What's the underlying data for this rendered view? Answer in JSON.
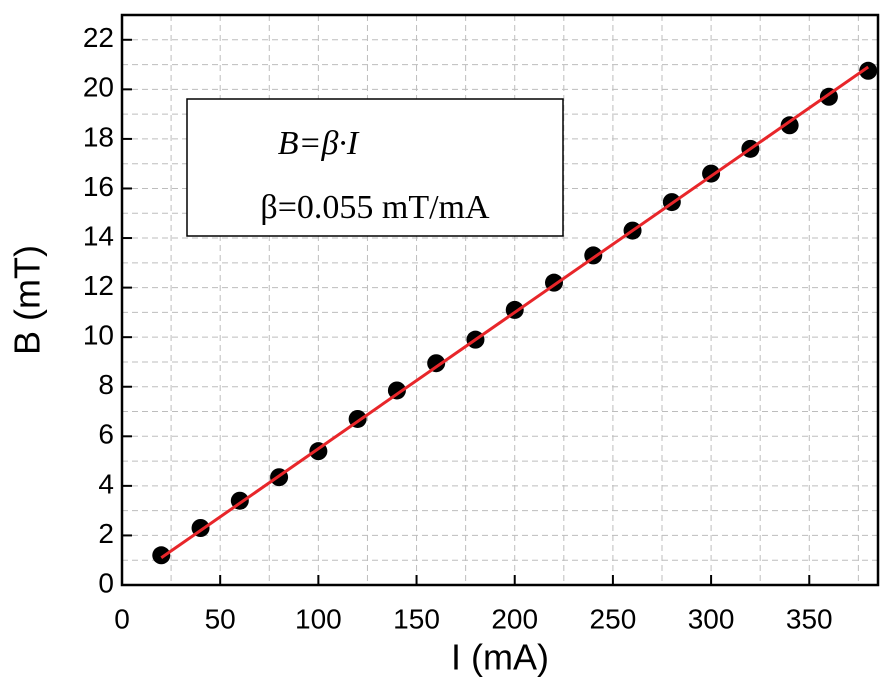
{
  "chart_data": {
    "type": "scatter",
    "xlabel": "I (mA)",
    "ylabel": "B (mT)",
    "x": [
      20,
      40,
      60,
      80,
      100,
      120,
      140,
      160,
      180,
      200,
      220,
      240,
      260,
      280,
      300,
      320,
      340,
      360,
      380
    ],
    "values": [
      1.2,
      2.3,
      3.4,
      4.35,
      5.4,
      6.7,
      7.85,
      8.95,
      9.9,
      11.1,
      12.2,
      13.3,
      14.3,
      15.45,
      16.6,
      17.6,
      18.55,
      19.7,
      20.75
    ],
    "color": "#000000",
    "fit_line": {
      "color": "#e8262a",
      "x": [
        20,
        380
      ],
      "values": [
        1.1,
        20.9
      ]
    },
    "annotations": [
      "B=β·I",
      "β=0.055 mT/mA"
    ],
    "xlim": [
      0,
      385
    ],
    "ylim": [
      0,
      23
    ],
    "xticks": [
      0,
      50,
      100,
      150,
      200,
      250,
      300,
      350
    ],
    "yticks": [
      0,
      2,
      4,
      6,
      8,
      10,
      12,
      14,
      16,
      18,
      20,
      22
    ],
    "xminor": [
      25,
      75,
      125,
      175,
      225,
      275,
      325,
      375
    ],
    "yminor": [
      1,
      3,
      5,
      7,
      9,
      11,
      13,
      15,
      17,
      19,
      21
    ],
    "grid": true
  }
}
